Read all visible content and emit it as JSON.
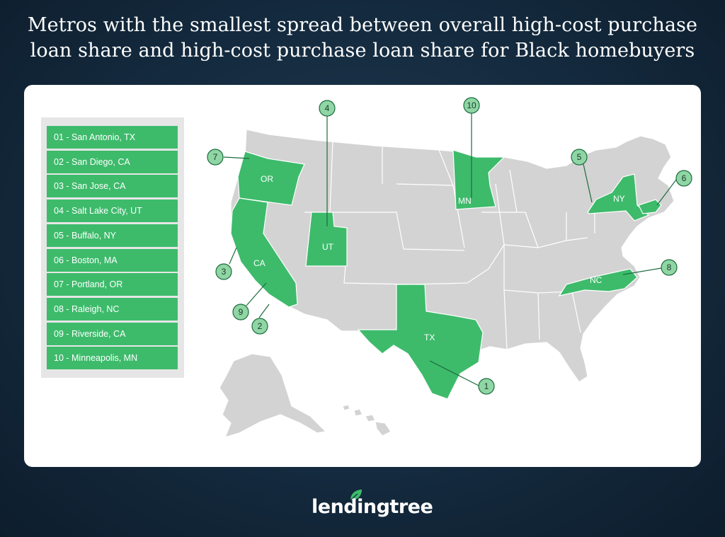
{
  "title": {
    "line1": "Metros with the smallest spread between overall high-cost purchase",
    "line2": "loan share and high-cost purchase loan share for Black homebuyers"
  },
  "legend": [
    "01 - San Antonio, TX",
    "02 - San Diego, CA",
    "03 - San Jose, CA",
    "04 - Salt Lake City, UT",
    "05 - Buffalo, NY",
    "06 - Boston, MA",
    "07 - Portland, OR",
    "08 - Raleigh, NC",
    "09 - Riverside, CA",
    "10 - Minneapolis, MN"
  ],
  "states": {
    "or": "OR",
    "ca": "CA",
    "ut": "UT",
    "tx": "TX",
    "mn": "MN",
    "ny": "NY",
    "nc": "NC"
  },
  "markers": {
    "m1": "1",
    "m2": "2",
    "m3": "3",
    "m4": "4",
    "m5": "5",
    "m6": "6",
    "m7": "7",
    "m8": "8",
    "m9": "9",
    "m10": "10"
  },
  "colors": {
    "highlight": "#3dbb6b",
    "state_gray": "#d3d3d3",
    "marker_fill": "#8fd6a4",
    "background": "#142a3e"
  },
  "brand": "lendingtree"
}
